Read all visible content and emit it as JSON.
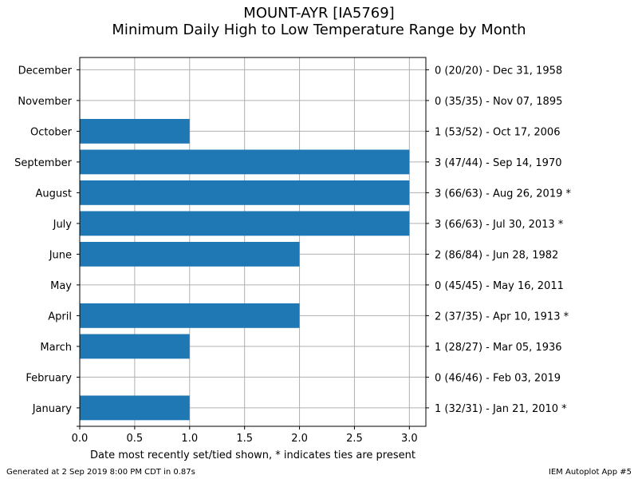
{
  "title": "MOUNT-AYR [IA5769]",
  "subtitle": "Minimum Daily High to Low Temperature Range by Month",
  "footer_left": "Generated at 2 Sep 2019 8:00 PM CDT in 0.87s",
  "footer_right": "IEM Autoplot App #5",
  "colors": {
    "bar": "#1f77b4",
    "grid": "#b0b0b0"
  },
  "chart_data": {
    "type": "bar",
    "orientation": "horizontal",
    "title": "MOUNT-AYR [IA5769]",
    "subtitle": "Minimum Daily High to Low Temperature Range by Month",
    "xlabel": "Date most recently set/tied shown, * indicates ties are present",
    "ylabel": "",
    "xlim": [
      0,
      3.15
    ],
    "xticks": [
      "0.0",
      "0.5",
      "1.0",
      "1.5",
      "2.0",
      "2.5",
      "3.0"
    ],
    "grid": true,
    "categories": [
      "January",
      "February",
      "March",
      "April",
      "May",
      "June",
      "July",
      "August",
      "September",
      "October",
      "November",
      "December"
    ],
    "values": [
      1,
      0,
      1,
      2,
      0,
      2,
      3,
      3,
      3,
      1,
      0,
      0
    ],
    "right_labels": [
      "1 (32/31) - Jan 21, 2010 *",
      "0 (46/46) - Feb 03, 2019",
      "1 (28/27) - Mar 05, 1936",
      "2 (37/35) - Apr 10, 1913 *",
      "0 (45/45) - May 16, 2011",
      "2 (86/84) - Jun 28, 1982",
      "3 (66/63) - Jul 30, 2013 *",
      "3 (66/63) - Aug 26, 2019 *",
      "3 (47/44) - Sep 14, 1970",
      "1 (53/52) - Oct 17, 2006",
      "0 (35/35) - Nov 07, 1895",
      "0 (20/20) - Dec 31, 1958"
    ]
  }
}
